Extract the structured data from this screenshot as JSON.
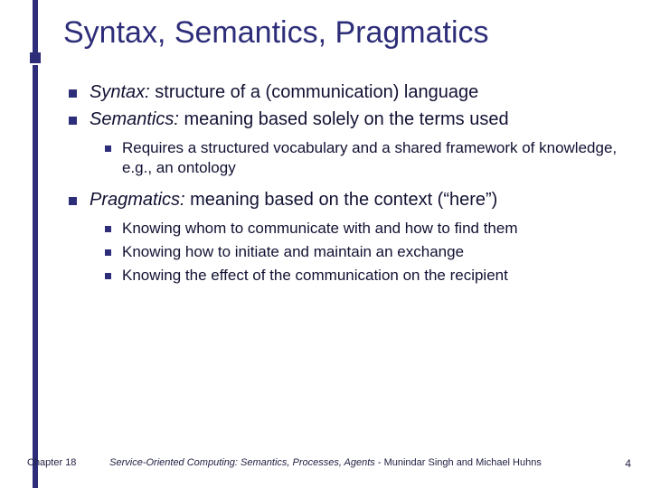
{
  "colors": {
    "accent": "#2d2d7a",
    "text": "#111133",
    "background": "#ffffff"
  },
  "typography": {
    "title_fontsize": 34,
    "lvl1_fontsize": 20,
    "lvl2_fontsize": 17,
    "footer_fontsize": 11
  },
  "title": "Syntax, Semantics, Pragmatics",
  "bullets": {
    "b1": {
      "term": "Syntax:",
      "rest": " structure of a (communication) language"
    },
    "b2": {
      "term": "Semantics:",
      "rest": " meaning based solely on the terms used"
    },
    "b2subs": {
      "s1": "Requires a structured vocabulary and a shared framework of knowledge, e.g., an ontology"
    },
    "b3": {
      "term": "Pragmatics:",
      "rest": " meaning based on the context (“here”)"
    },
    "b3subs": {
      "s1": "Knowing whom to communicate with and how to find them",
      "s2": "Knowing how to initiate and maintain an exchange",
      "s3": "Knowing the effect of the communication on the recipient"
    }
  },
  "footer": {
    "left": "Chapter 18",
    "center_italic": "Service-Oriented Computing: Semantics, Processes, Agents",
    "center_plain": " - Munindar Singh and Michael Huhns",
    "page": "4"
  }
}
